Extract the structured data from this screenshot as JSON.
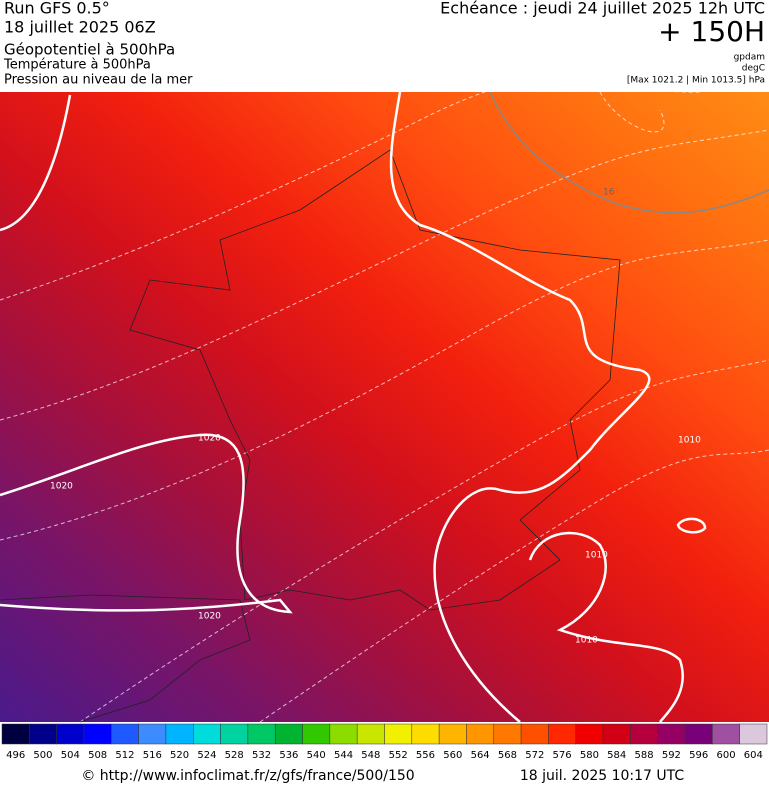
{
  "header": {
    "run": "Run GFS 0.5°",
    "date": "18 juillet 2025 06Z",
    "field1": "Géopotentiel à 500hPa",
    "field2": "Température à 500hPa",
    "field3": "Pression au niveau de la mer",
    "echeance": "Echéance : jeudi 24 juillet 2025 12h UTC",
    "lead": "+ 150H",
    "unit1": "gpdam",
    "unit2": "degC",
    "range": "[Max 1021.2 | Min 1013.5] hPa"
  },
  "map": {
    "contour_labels": [
      "1020",
      "1020",
      "1020",
      "1010",
      "1010",
      "1010",
      "16"
    ]
  },
  "colorbar": {
    "labels": [
      496,
      500,
      504,
      508,
      512,
      516,
      520,
      524,
      528,
      532,
      536,
      540,
      544,
      548,
      552,
      556,
      560,
      564,
      568,
      572,
      576,
      580,
      584,
      588,
      592,
      596,
      600,
      604
    ],
    "colors": [
      "#000040",
      "#00008b",
      "#0000cd",
      "#0000ff",
      "#1e5aff",
      "#3c8cff",
      "#00b4ff",
      "#00dcdc",
      "#00d2a0",
      "#00c864",
      "#00b432",
      "#32c800",
      "#8cdc00",
      "#c8e600",
      "#f0f000",
      "#ffdc00",
      "#ffb400",
      "#ff9600",
      "#ff7800",
      "#ff5000",
      "#ff2800",
      "#f00000",
      "#d20014",
      "#b4003c",
      "#960064",
      "#780078",
      "#a050a0",
      "#dcc8dc"
    ]
  },
  "footer": {
    "url": "© http://www.infoclimat.fr/z/gfs/france/500/150",
    "time": "18 juil. 2025 10:17 UTC"
  }
}
